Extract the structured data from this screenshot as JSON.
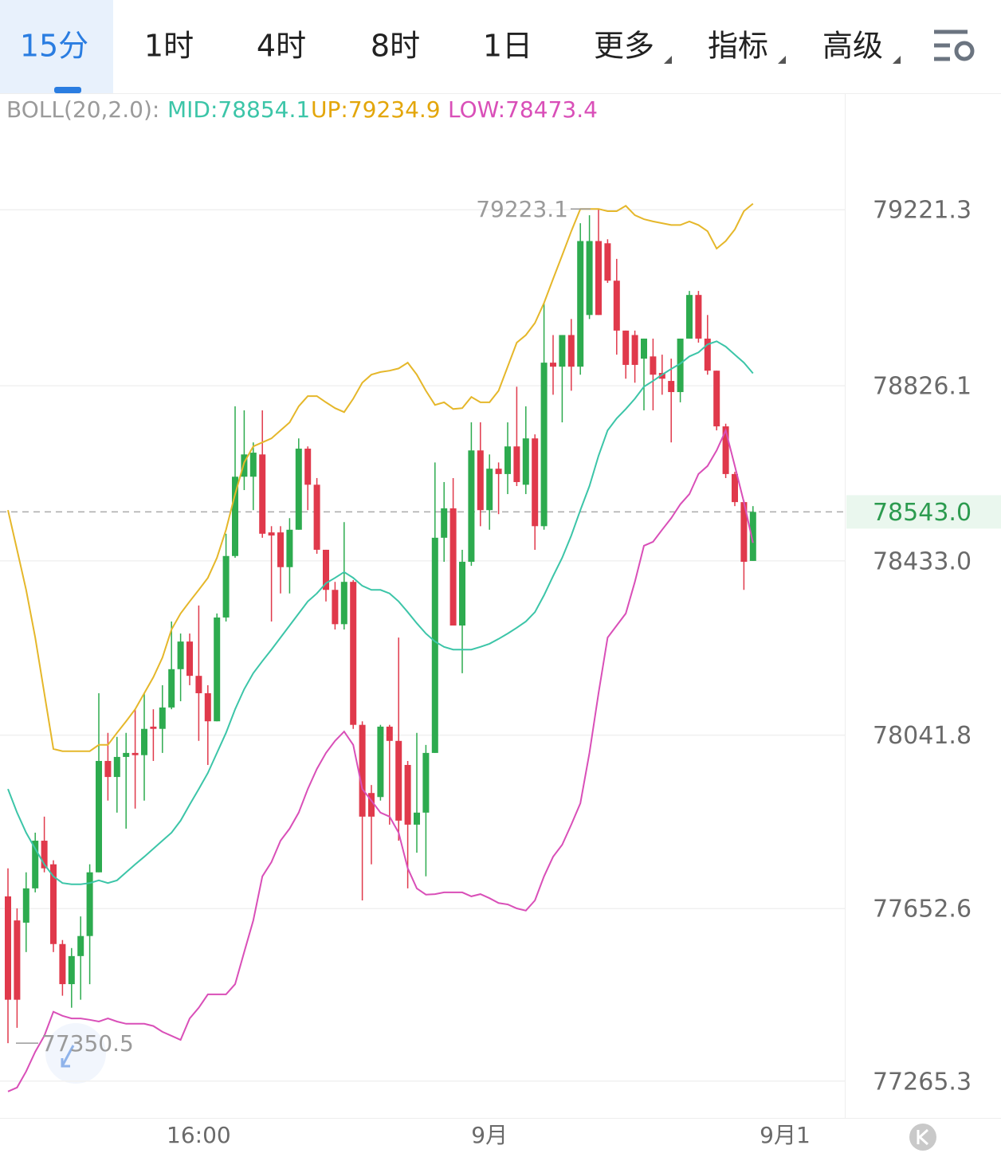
{
  "toolbar": {
    "tabs": [
      "15分",
      "1时",
      "4时",
      "8时",
      "1日",
      "更多",
      "指标",
      "高级"
    ],
    "active": 0
  },
  "chart_data": {
    "type": "candlestick",
    "indicator_label": "BOLL(20,2.0):",
    "categories": [
      null,
      null,
      null,
      null,
      null,
      null,
      null,
      null,
      null,
      null,
      null,
      null,
      null,
      null,
      null,
      null,
      null,
      null,
      null,
      null,
      null,
      "16:00",
      null,
      null,
      null,
      null,
      null,
      null,
      null,
      null,
      null,
      null,
      null,
      null,
      null,
      null,
      null,
      null,
      null,
      null,
      null,
      null,
      null,
      null,
      null,
      null,
      null,
      null,
      null,
      null,
      null,
      null,
      null,
      "9月",
      null,
      null,
      null,
      null,
      null,
      null,
      null,
      null,
      null,
      null,
      null,
      null,
      null,
      null,
      null,
      null,
      null,
      null,
      null,
      null,
      null,
      null,
      null,
      null,
      null,
      null,
      null,
      null,
      null,
      null,
      null,
      "9月1"
    ],
    "up_color": "#2dab4f",
    "down_color": "#e0394b",
    "open": [
      77680,
      77626,
      77621,
      77698,
      77805,
      77752,
      77573,
      77483,
      77546,
      77591,
      77734,
      77984,
      77948,
      77993,
      78002,
      77997,
      78061,
      78056,
      78104,
      78190,
      78252,
      78175,
      78136,
      78073,
      78306,
      78444,
      78622,
      78622,
      78672,
      78497,
      78497,
      78419,
      78503,
      78685,
      78604,
      78458,
      78368,
      78291,
      78386,
      78065,
      77912,
      77903,
      78061,
      78029,
      77975,
      77841,
      77868,
      78002,
      78485,
      78551,
      78288,
      78431,
      78681,
      78547,
      78640,
      78628,
      78690,
      78604,
      78708,
      78511,
      78878,
      78869,
      78940,
      78869,
      78985,
      79151,
      79146,
      79062,
      78950,
      78940,
      78887,
      78892,
      78855,
      78837,
      78812,
      78932,
      79030,
      78932,
      78860,
      78735,
      78628,
      78565,
      78433,
      null,
      null,
      null
    ],
    "high": [
      77743,
      77653,
      77734,
      77823,
      77859,
      77761,
      77582,
      77564,
      77635,
      77752,
      78136,
      78047,
      78038,
      78047,
      78100,
      78136,
      78100,
      78154,
      78297,
      78270,
      78270,
      78333,
      78154,
      78315,
      78494,
      78780,
      78771,
      78699,
      78771,
      78511,
      78511,
      78529,
      78708,
      78690,
      78619,
      78458,
      78386,
      78520,
      78390,
      78073,
      77930,
      78065,
      78065,
      78261,
      77984,
      78047,
      78020,
      78654,
      78610,
      78619,
      78458,
      78744,
      78744,
      78672,
      78654,
      78744,
      78824,
      78780,
      78717,
      79012,
      78940,
      78940,
      78976,
      79191,
      79209,
      79223.1,
      79155,
      79111,
      78950,
      78950,
      78932,
      78932,
      78896,
      78887,
      78932,
      79039,
      79039,
      78985,
      78860,
      78741,
      78633,
      78569,
      78556,
      null,
      null,
      null
    ],
    "low": [
      77350.5,
      77385,
      77555,
      77689,
      77734,
      77555,
      77457,
      77430,
      77448,
      77483,
      77734,
      77895,
      77868,
      77832,
      77877,
      77895,
      77984,
      78002,
      78100,
      78118,
      78154,
      78029,
      77975,
      78073,
      78297,
      78440,
      78592,
      78547,
      78485,
      78297,
      78360,
      78360,
      78503,
      78547,
      78449,
      78342,
      78279,
      78279,
      78056,
      77671,
      77752,
      77895,
      77841,
      77805,
      77698,
      77778,
      77725,
      78002,
      78431,
      78288,
      78181,
      78422,
      78511,
      78503,
      78538,
      78583,
      78601,
      78583,
      78458,
      78503,
      78806,
      78744,
      78815,
      78851,
      78976,
      78985,
      79057,
      78896,
      78842,
      78833,
      78771,
      78771,
      78806,
      78699,
      78789,
      78932,
      78923,
      78851,
      78726,
      78619,
      78556,
      78368,
      78433,
      null,
      null,
      null
    ],
    "close": [
      77448,
      77448,
      77698,
      77805,
      77743,
      77573,
      77483,
      77546,
      77591,
      77734,
      77984,
      77948,
      77993,
      78002,
      77997,
      78056,
      78056,
      78104,
      78190,
      78252,
      78175,
      78136,
      78073,
      78306,
      78444,
      78622,
      78672,
      78676,
      78494,
      78490,
      78419,
      78503,
      78685,
      78604,
      78458,
      78368,
      78291,
      78386,
      78065,
      77859,
      77859,
      78061,
      78029,
      77850,
      77841,
      77868,
      78002,
      78485,
      78551,
      78288,
      78431,
      78681,
      78547,
      78640,
      78628,
      78690,
      78610,
      78708,
      78511,
      78878,
      78869,
      78940,
      78869,
      79151,
      79151,
      78985,
      79062,
      78950,
      78873,
      78873,
      78932,
      78851,
      78842,
      78812,
      78932,
      79030,
      78932,
      78860,
      78735,
      78628,
      78565,
      78431,
      78543.0,
      null,
      null,
      null
    ],
    "series": [
      {
        "label": "MID:78854.1",
        "color": "#3cc5a8",
        "values": [
          77921,
          77868,
          77823,
          77787,
          77752,
          77725,
          77710,
          77707,
          77707,
          77710,
          77716,
          77710,
          77716,
          77734,
          77752,
          77769,
          77787,
          77805,
          77823,
          77850,
          77886,
          77921,
          77957,
          78002,
          78047,
          78100,
          78145,
          78181,
          78208,
          78234,
          78261,
          78288,
          78315,
          78342,
          78360,
          78383,
          78395,
          78408,
          78395,
          78377,
          78368,
          78368,
          78360,
          78342,
          78318,
          78293,
          78270,
          78252,
          78240,
          78234,
          78234,
          78234,
          78240,
          78247,
          78258,
          78270,
          78283,
          78297,
          78318,
          78356,
          78399,
          78440,
          78490,
          78547,
          78601,
          78669,
          78726,
          78753,
          78774,
          78797,
          78824,
          78837,
          78851,
          78864,
          78876,
          78892,
          78901,
          78919,
          78926,
          78914,
          78896,
          78878,
          78854.1,
          null,
          null,
          null
        ]
      },
      {
        "label": "UP:79234.9",
        "color": "#e5b72a",
        "values": [
          78547,
          78458,
          78368,
          78261,
          78136,
          78011,
          78006,
          78006,
          78006,
          78006,
          78020,
          78020,
          78047,
          78073,
          78100,
          78136,
          78172,
          78216,
          78279,
          78315,
          78342,
          78368,
          78395,
          78440,
          78503,
          78583,
          78654,
          78690,
          78699,
          78708,
          78726,
          78744,
          78780,
          78803,
          78803,
          78789,
          78776,
          78767,
          78797,
          78833,
          78851,
          78857,
          78860,
          78865,
          78878,
          78851,
          78815,
          78783,
          78789,
          78774,
          78776,
          78801,
          78789,
          78789,
          78815,
          78869,
          78923,
          78940,
          78967,
          79012,
          79066,
          79119,
          79173,
          79223,
          79223,
          79223,
          79218,
          79218,
          79230,
          79209,
          79200,
          79195,
          79191,
          79187,
          79187,
          79195,
          79187,
          79173,
          79134,
          79151,
          79177,
          79218,
          79234.9,
          null,
          null,
          null
        ]
      },
      {
        "label": "LOW:78473.4",
        "color": "#d94fb8",
        "values": [
          77242,
          77251,
          77287,
          77331,
          77367,
          77421,
          77412,
          77406,
          77406,
          77403,
          77399,
          77406,
          77399,
          77394,
          77394,
          77394,
          77389,
          77376,
          77367,
          77358,
          77406,
          77430,
          77460,
          77460,
          77460,
          77483,
          77555,
          77626,
          77725,
          77757,
          77805,
          77832,
          77868,
          77921,
          77966,
          78002,
          78029,
          78050,
          78020,
          77921,
          77895,
          77868,
          77859,
          77823,
          77743,
          77698,
          77684,
          77685,
          77689,
          77689,
          77689,
          77680,
          77685,
          77676,
          77665,
          77662,
          77653,
          77648,
          77671,
          77725,
          77769,
          77796,
          77841,
          77889,
          78002,
          78136,
          78261,
          78288,
          78315,
          78386,
          78467,
          78476,
          78503,
          78529,
          78560,
          78583,
          78628,
          78646,
          78681,
          78726,
          78646,
          78565,
          78473.4,
          null,
          null,
          null
        ]
      }
    ],
    "max_label": 79223.1,
    "min_label": 77350.5,
    "last_price": {
      "value": 78543.0,
      "label": "78543.0"
    },
    "ylim": [
      77188,
      79481
    ],
    "yticks": [
      77265.3,
      77652.6,
      78041.8,
      {
        "value": 78433.0,
        "label": "78433.0"
      },
      78826.1,
      79221.3
    ],
    "grid": true
  }
}
